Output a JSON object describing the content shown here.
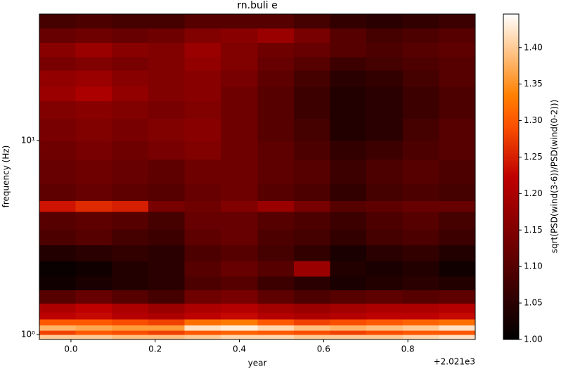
{
  "chart_data": {
    "type": "heatmap",
    "title": "rn.buli e",
    "xlabel": "year",
    "ylabel": "frequency (Hz)",
    "x_offset_label": "+2.021e3",
    "colorbar_label": "sqrt(PSD(wind(3-6))/PSD(wind(0-2)))",
    "colormap": "gist_heat",
    "yscale": "log",
    "xlim": [
      -0.075,
      0.96
    ],
    "ylim": [
      0.943,
      44.9
    ],
    "clim": [
      1.0,
      1.446
    ],
    "xticks": [
      {
        "value": 0,
        "label": "0.0"
      },
      {
        "value": 0.2,
        "label": "0.2"
      },
      {
        "value": 0.4,
        "label": "0.4"
      },
      {
        "value": 0.6,
        "label": "0.6"
      },
      {
        "value": 0.8,
        "label": "0.8"
      }
    ],
    "yticks": [
      {
        "value": 1,
        "label": "10⁰"
      },
      {
        "value": 10,
        "label": "10¹"
      }
    ],
    "cticks": [
      {
        "value": 1,
        "label": "1.00"
      },
      {
        "value": 1.05,
        "label": "1.05"
      },
      {
        "value": 1.1,
        "label": "1.10"
      },
      {
        "value": 1.15,
        "label": "1.15"
      },
      {
        "value": 1.2,
        "label": "1.20"
      },
      {
        "value": 1.25,
        "label": "1.25"
      },
      {
        "value": 1.3,
        "label": "1.30"
      },
      {
        "value": 1.35,
        "label": "1.35"
      },
      {
        "value": 1.4,
        "label": "1.40"
      }
    ],
    "x_edges": [
      -0.075,
      0.011,
      0.097,
      0.184,
      0.27,
      0.356,
      0.443,
      0.529,
      0.615,
      0.701,
      0.788,
      0.874,
      0.96
    ],
    "y_edges": [
      0.943,
      1.0,
      1.05,
      1.12,
      1.2,
      1.3,
      1.45,
      1.7,
      2.0,
      2.4,
      2.9,
      3.5,
      4.3,
      4.9,
      6,
      8,
      10,
      13,
      16,
      19,
      23,
      27,
      32,
      38,
      44.9
    ],
    "z": [
      [
        1.4,
        1.4,
        1.39,
        1.39,
        1.4,
        1.41,
        1.41,
        1.4,
        1.4,
        1.4,
        1.41,
        1.42
      ],
      [
        1.28,
        1.3,
        1.29,
        1.28,
        1.3,
        1.31,
        1.3,
        1.29,
        1.28,
        1.29,
        1.3,
        1.3
      ],
      [
        1.38,
        1.37,
        1.36,
        1.36,
        1.42,
        1.43,
        1.41,
        1.39,
        1.38,
        1.39,
        1.4,
        1.42
      ],
      [
        1.3,
        1.3,
        1.29,
        1.28,
        1.32,
        1.33,
        1.3,
        1.28,
        1.29,
        1.3,
        1.31,
        1.32
      ],
      [
        1.22,
        1.23,
        1.21,
        1.2,
        1.22,
        1.23,
        1.21,
        1.2,
        1.21,
        1.22,
        1.22,
        1.23
      ],
      [
        1.2,
        1.22,
        1.2,
        1.18,
        1.2,
        1.21,
        1.19,
        1.18,
        1.19,
        1.2,
        1.2,
        1.21
      ],
      [
        1.1,
        1.12,
        1.1,
        1.08,
        1.13,
        1.14,
        1.11,
        1.09,
        1.1,
        1.11,
        1.1,
        1.11
      ],
      [
        1.02,
        1.03,
        1.04,
        1.05,
        1.09,
        1.1,
        1.07,
        1.05,
        1.03,
        1.04,
        1.05,
        1.04
      ],
      [
        1.01,
        1.02,
        1.04,
        1.05,
        1.1,
        1.12,
        1.1,
        1.18,
        1.04,
        1.03,
        1.04,
        1.02
      ],
      [
        1.04,
        1.05,
        1.06,
        1.05,
        1.09,
        1.1,
        1.08,
        1.06,
        1.03,
        1.05,
        1.06,
        1.04
      ],
      [
        1.09,
        1.1,
        1.08,
        1.07,
        1.11,
        1.12,
        1.09,
        1.08,
        1.06,
        1.08,
        1.09,
        1.07
      ],
      [
        1.1,
        1.11,
        1.1,
        1.08,
        1.12,
        1.12,
        1.1,
        1.09,
        1.07,
        1.09,
        1.1,
        1.08
      ],
      [
        1.24,
        1.26,
        1.25,
        1.14,
        1.13,
        1.15,
        1.18,
        1.14,
        1.1,
        1.11,
        1.12,
        1.12
      ],
      [
        1.11,
        1.12,
        1.11,
        1.1,
        1.12,
        1.13,
        1.1,
        1.09,
        1.06,
        1.08,
        1.09,
        1.08
      ],
      [
        1.12,
        1.13,
        1.12,
        1.11,
        1.13,
        1.13,
        1.11,
        1.1,
        1.07,
        1.09,
        1.1,
        1.09
      ],
      [
        1.13,
        1.14,
        1.13,
        1.14,
        1.15,
        1.13,
        1.11,
        1.09,
        1.06,
        1.07,
        1.09,
        1.1
      ],
      [
        1.14,
        1.15,
        1.14,
        1.15,
        1.16,
        1.13,
        1.1,
        1.08,
        1.04,
        1.05,
        1.08,
        1.1
      ],
      [
        1.15,
        1.16,
        1.15,
        1.14,
        1.15,
        1.13,
        1.1,
        1.07,
        1.04,
        1.05,
        1.07,
        1.09
      ],
      [
        1.18,
        1.2,
        1.17,
        1.15,
        1.16,
        1.13,
        1.1,
        1.07,
        1.04,
        1.05,
        1.07,
        1.09
      ],
      [
        1.17,
        1.18,
        1.16,
        1.15,
        1.16,
        1.14,
        1.11,
        1.08,
        1.05,
        1.06,
        1.08,
        1.1
      ],
      [
        1.14,
        1.15,
        1.14,
        1.15,
        1.17,
        1.15,
        1.12,
        1.1,
        1.07,
        1.08,
        1.09,
        1.1
      ],
      [
        1.16,
        1.18,
        1.16,
        1.15,
        1.18,
        1.15,
        1.13,
        1.12,
        1.1,
        1.09,
        1.1,
        1.11
      ],
      [
        1.12,
        1.13,
        1.12,
        1.13,
        1.15,
        1.16,
        1.18,
        1.14,
        1.1,
        1.08,
        1.09,
        1.1
      ],
      [
        1.08,
        1.09,
        1.08,
        1.08,
        1.1,
        1.1,
        1.1,
        1.08,
        1.06,
        1.05,
        1.06,
        1.07
      ]
    ]
  }
}
